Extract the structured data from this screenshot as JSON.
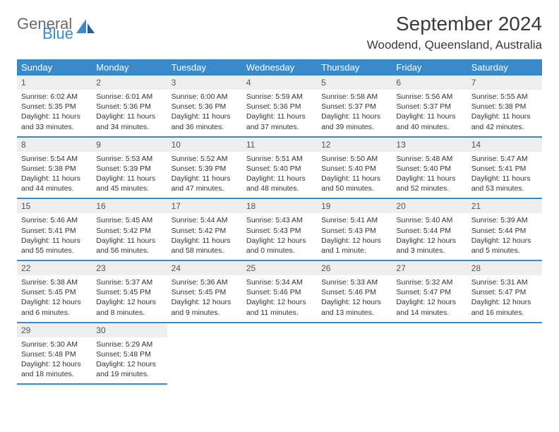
{
  "logo": {
    "text1": "General",
    "text2": "Blue",
    "color1": "#6a6a6a",
    "color2": "#3a8ac9"
  },
  "title": "September 2024",
  "location": "Woodend, Queensland, Australia",
  "header_bg": "#3a8ac9",
  "daynum_bg": "#eeeeee",
  "border_color": "#3a8ac9",
  "day_names": [
    "Sunday",
    "Monday",
    "Tuesday",
    "Wednesday",
    "Thursday",
    "Friday",
    "Saturday"
  ],
  "days": [
    {
      "n": 1,
      "sr": "6:02 AM",
      "ss": "5:35 PM",
      "dl": "11 hours and 33 minutes."
    },
    {
      "n": 2,
      "sr": "6:01 AM",
      "ss": "5:36 PM",
      "dl": "11 hours and 34 minutes."
    },
    {
      "n": 3,
      "sr": "6:00 AM",
      "ss": "5:36 PM",
      "dl": "11 hours and 36 minutes."
    },
    {
      "n": 4,
      "sr": "5:59 AM",
      "ss": "5:36 PM",
      "dl": "11 hours and 37 minutes."
    },
    {
      "n": 5,
      "sr": "5:58 AM",
      "ss": "5:37 PM",
      "dl": "11 hours and 39 minutes."
    },
    {
      "n": 6,
      "sr": "5:56 AM",
      "ss": "5:37 PM",
      "dl": "11 hours and 40 minutes."
    },
    {
      "n": 7,
      "sr": "5:55 AM",
      "ss": "5:38 PM",
      "dl": "11 hours and 42 minutes."
    },
    {
      "n": 8,
      "sr": "5:54 AM",
      "ss": "5:38 PM",
      "dl": "11 hours and 44 minutes."
    },
    {
      "n": 9,
      "sr": "5:53 AM",
      "ss": "5:39 PM",
      "dl": "11 hours and 45 minutes."
    },
    {
      "n": 10,
      "sr": "5:52 AM",
      "ss": "5:39 PM",
      "dl": "11 hours and 47 minutes."
    },
    {
      "n": 11,
      "sr": "5:51 AM",
      "ss": "5:40 PM",
      "dl": "11 hours and 48 minutes."
    },
    {
      "n": 12,
      "sr": "5:50 AM",
      "ss": "5:40 PM",
      "dl": "11 hours and 50 minutes."
    },
    {
      "n": 13,
      "sr": "5:48 AM",
      "ss": "5:40 PM",
      "dl": "11 hours and 52 minutes."
    },
    {
      "n": 14,
      "sr": "5:47 AM",
      "ss": "5:41 PM",
      "dl": "11 hours and 53 minutes."
    },
    {
      "n": 15,
      "sr": "5:46 AM",
      "ss": "5:41 PM",
      "dl": "11 hours and 55 minutes."
    },
    {
      "n": 16,
      "sr": "5:45 AM",
      "ss": "5:42 PM",
      "dl": "11 hours and 56 minutes."
    },
    {
      "n": 17,
      "sr": "5:44 AM",
      "ss": "5:42 PM",
      "dl": "11 hours and 58 minutes."
    },
    {
      "n": 18,
      "sr": "5:43 AM",
      "ss": "5:43 PM",
      "dl": "12 hours and 0 minutes."
    },
    {
      "n": 19,
      "sr": "5:41 AM",
      "ss": "5:43 PM",
      "dl": "12 hours and 1 minute."
    },
    {
      "n": 20,
      "sr": "5:40 AM",
      "ss": "5:44 PM",
      "dl": "12 hours and 3 minutes."
    },
    {
      "n": 21,
      "sr": "5:39 AM",
      "ss": "5:44 PM",
      "dl": "12 hours and 5 minutes."
    },
    {
      "n": 22,
      "sr": "5:38 AM",
      "ss": "5:45 PM",
      "dl": "12 hours and 6 minutes."
    },
    {
      "n": 23,
      "sr": "5:37 AM",
      "ss": "5:45 PM",
      "dl": "12 hours and 8 minutes."
    },
    {
      "n": 24,
      "sr": "5:36 AM",
      "ss": "5:45 PM",
      "dl": "12 hours and 9 minutes."
    },
    {
      "n": 25,
      "sr": "5:34 AM",
      "ss": "5:46 PM",
      "dl": "12 hours and 11 minutes."
    },
    {
      "n": 26,
      "sr": "5:33 AM",
      "ss": "5:46 PM",
      "dl": "12 hours and 13 minutes."
    },
    {
      "n": 27,
      "sr": "5:32 AM",
      "ss": "5:47 PM",
      "dl": "12 hours and 14 minutes."
    },
    {
      "n": 28,
      "sr": "5:31 AM",
      "ss": "5:47 PM",
      "dl": "12 hours and 16 minutes."
    },
    {
      "n": 29,
      "sr": "5:30 AM",
      "ss": "5:48 PM",
      "dl": "12 hours and 18 minutes."
    },
    {
      "n": 30,
      "sr": "5:29 AM",
      "ss": "5:48 PM",
      "dl": "12 hours and 19 minutes."
    }
  ],
  "labels": {
    "sunrise": "Sunrise:",
    "sunset": "Sunset:",
    "daylight": "Daylight:"
  }
}
